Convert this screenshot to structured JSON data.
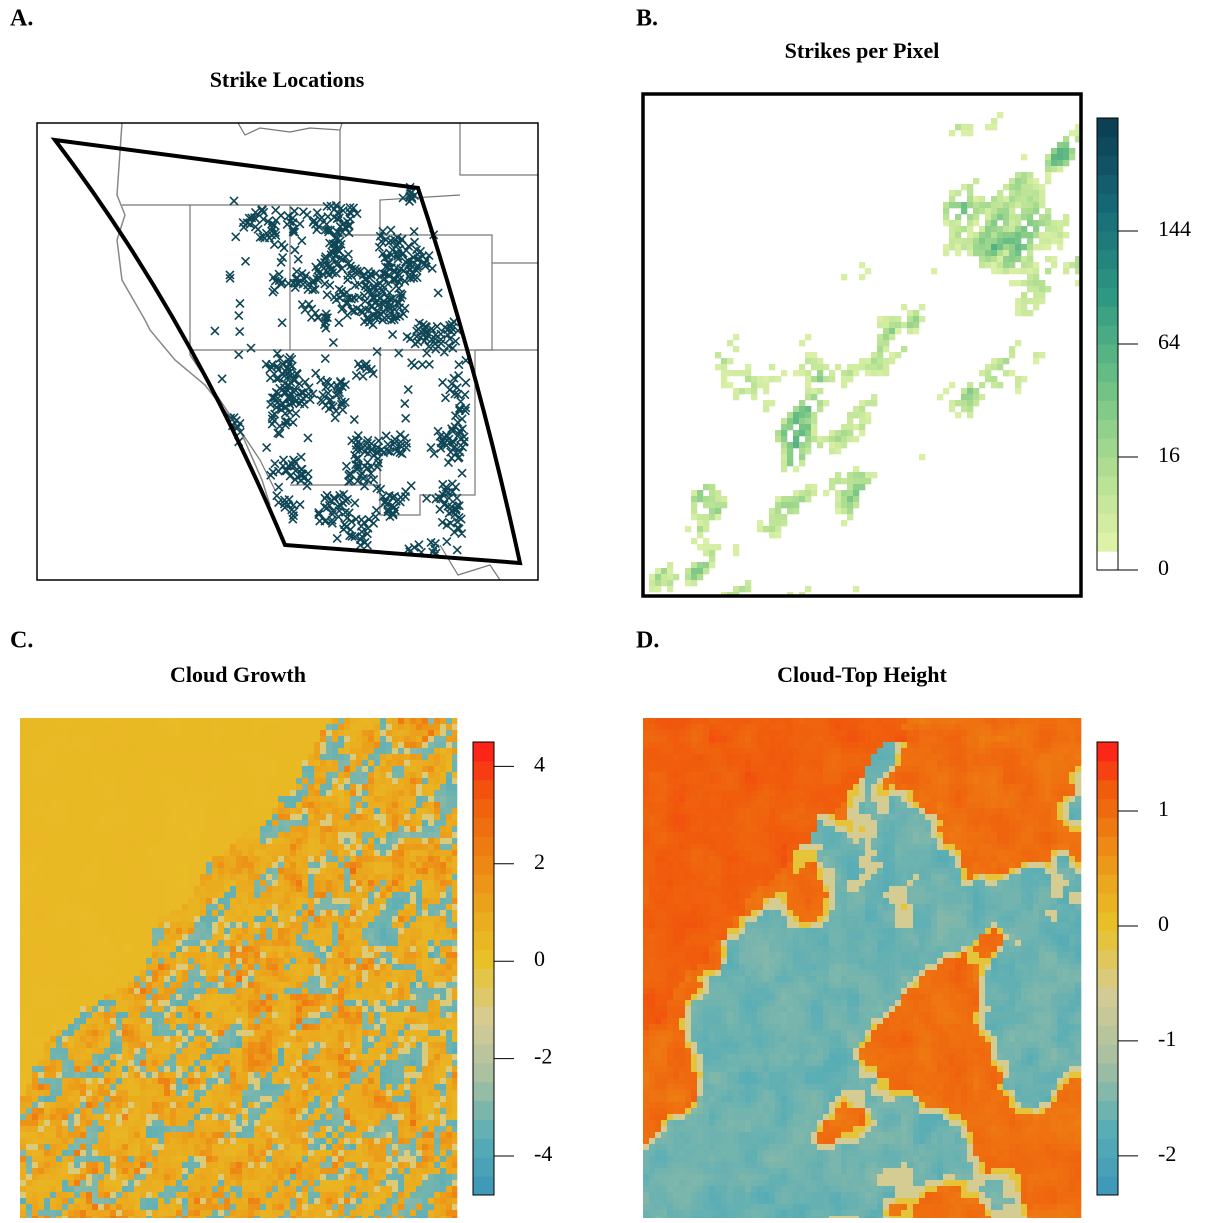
{
  "chart_data": [
    {
      "type": "map",
      "label": "A.",
      "title": "Strike Locations",
      "color": "#0f4656"
    },
    {
      "type": "heatmap",
      "label": "B.",
      "title": "Strikes per Pixel",
      "zscale": "sqrt",
      "zlim": [
        0,
        256
      ],
      "zticks": [
        0,
        16,
        64,
        144
      ],
      "zero_color": "#ffffff",
      "colors": [
        "#eef8b0",
        "#b8e294",
        "#72c384",
        "#2f9a82",
        "#166a76",
        "#0b3b50"
      ]
    },
    {
      "type": "heatmap",
      "label": "C.",
      "title": "Cloud Growth",
      "zscale": "linear",
      "zlim": [
        -4.8,
        4.5
      ],
      "zticks": [
        -4,
        -2,
        0,
        2,
        4
      ],
      "colors_below": [
        "#3c95b9",
        "#5aaeb5",
        "#a6c0a0",
        "#d6cc94",
        "#e8c228"
      ],
      "colors_above": [
        "#e8c228",
        "#eba51c",
        "#ee7f12",
        "#f05a0c",
        "#ff1a1a"
      ]
    },
    {
      "type": "heatmap",
      "label": "D.",
      "title": "Cloud-Top Height",
      "zscale": "linear",
      "zlim": [
        -2.34,
        1.6
      ],
      "zticks": [
        -2,
        -1,
        0,
        1
      ],
      "colors_below": [
        "#3c95b9",
        "#5aaeb5",
        "#a6c0a0",
        "#d6cc94",
        "#e8c228"
      ],
      "colors_above": [
        "#e8c228",
        "#eba51c",
        "#ee7f12",
        "#f05a0c",
        "#ff1a1a"
      ]
    }
  ]
}
